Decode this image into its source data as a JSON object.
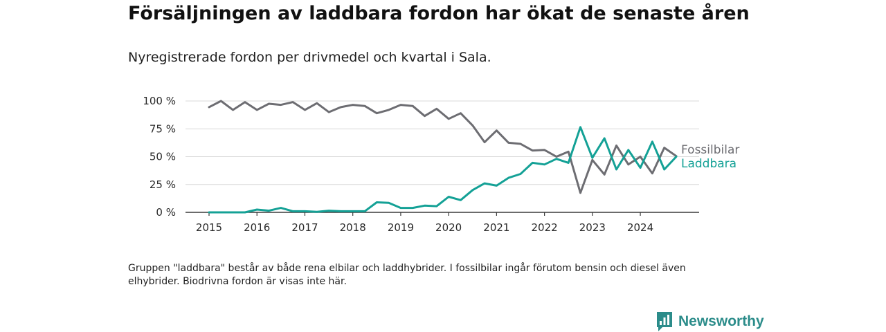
{
  "title": "Försäljningen av laddbara fordon har ökat de senaste åren",
  "subtitle": "Nyregistrerade fordon per drivmedel och kvartal i Sala.",
  "footnote": "Gruppen \"laddbara\" består av både rena elbilar och laddhybrider. I fossilbilar ingår förutom bensin och diesel även elhybrider. Biodrivna fordon är visas inte här.",
  "brand": {
    "name": "Newsworthy",
    "icon": "newsworthy-logo-icon",
    "color": "#2b8c8a"
  },
  "chart_data": {
    "type": "line",
    "x_start_year": 2015,
    "quarters_per_year": 4,
    "xlim": [
      2015,
      2024.75
    ],
    "ylim": [
      0,
      100
    ],
    "y_ticks": [
      {
        "value": 0,
        "label": "0 %"
      },
      {
        "value": 25,
        "label": "25 %"
      },
      {
        "value": 50,
        "label": "50 %"
      },
      {
        "value": 75,
        "label": "75 %"
      },
      {
        "value": 100,
        "label": "100 %"
      }
    ],
    "x_ticks": [
      {
        "value": 2015,
        "label": "2015"
      },
      {
        "value": 2016,
        "label": "2016"
      },
      {
        "value": 2017,
        "label": "2017"
      },
      {
        "value": 2018,
        "label": "2018"
      },
      {
        "value": 2019,
        "label": "2019"
      },
      {
        "value": 2020,
        "label": "2020"
      },
      {
        "value": 2021,
        "label": "2021"
      },
      {
        "value": 2022,
        "label": "2022"
      },
      {
        "value": 2023,
        "label": "2023"
      },
      {
        "value": 2024,
        "label": "2024"
      }
    ],
    "grid": true,
    "series": [
      {
        "name": "Fossilbilar",
        "color": "#6d6d72",
        "values": [
          94.5,
          100,
          92,
          99,
          92,
          97.5,
          96.5,
          99,
          92,
          98,
          90,
          94.5,
          96.5,
          95.5,
          89,
          92,
          96.5,
          95.5,
          86.5,
          93,
          84,
          89,
          78,
          63,
          73.5,
          62.5,
          61.5,
          55.5,
          56,
          50,
          54.5,
          17.5,
          47,
          34,
          60,
          43,
          50,
          35,
          58,
          50.5
        ]
      },
      {
        "name": "Laddbara",
        "color": "#14a196",
        "values": [
          0,
          0,
          0,
          0,
          2.5,
          1.5,
          4,
          1,
          1,
          0.5,
          1.5,
          1,
          1,
          1,
          9,
          8.5,
          4,
          4,
          6,
          5.5,
          14,
          11,
          20,
          26,
          24,
          31,
          34.5,
          44.5,
          43,
          48,
          44.5,
          76.5,
          49,
          66.5,
          38.5,
          56,
          40,
          63.5,
          38.5,
          50
        ]
      }
    ]
  }
}
